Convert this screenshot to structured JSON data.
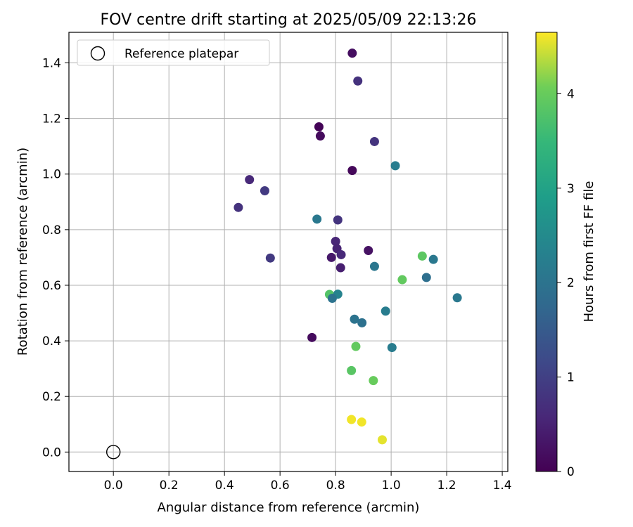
{
  "chart_data": {
    "type": "scatter",
    "title": "FOV centre drift starting at 2025/05/09 22:13:26",
    "xlabel": "Angular distance from reference (arcmin)",
    "ylabel": "Rotation from reference (arcmin)",
    "xlim": [
      -0.16,
      1.42
    ],
    "ylim": [
      -0.07,
      1.51
    ],
    "xticks": [
      "0.0",
      "0.2",
      "0.4",
      "0.6",
      "0.8",
      "1.0",
      "1.2",
      "1.4"
    ],
    "xtick_values": [
      0.0,
      0.2,
      0.4,
      0.6,
      0.8,
      1.0,
      1.2,
      1.4
    ],
    "yticks": [
      "0.0",
      "0.2",
      "0.4",
      "0.6",
      "0.8",
      "1.0",
      "1.2",
      "1.4"
    ],
    "ytick_values": [
      0.0,
      0.2,
      0.4,
      0.6,
      0.8,
      1.0,
      1.2,
      1.4
    ],
    "grid": true,
    "legend": {
      "position": "top-left",
      "label": "Reference platepar"
    },
    "reference_point": {
      "x": 0.0,
      "y": 0.0
    },
    "colorbar": {
      "label": "Hours from first FF file",
      "range": [
        0,
        4.65
      ],
      "ticks": [
        "0",
        "1",
        "2",
        "3",
        "4"
      ],
      "tick_values": [
        0,
        1,
        2,
        3,
        4
      ],
      "colormap": "viridis"
    },
    "points": [
      {
        "x": 0.86,
        "y": 1.435,
        "h": 0.2
      },
      {
        "x": 0.88,
        "y": 1.335,
        "h": 0.75
      },
      {
        "x": 0.74,
        "y": 1.17,
        "h": 0.05
      },
      {
        "x": 0.745,
        "y": 1.137,
        "h": 0.15
      },
      {
        "x": 0.94,
        "y": 1.117,
        "h": 0.8
      },
      {
        "x": 1.015,
        "y": 1.03,
        "h": 2.2
      },
      {
        "x": 0.86,
        "y": 1.013,
        "h": 0.1
      },
      {
        "x": 0.49,
        "y": 0.98,
        "h": 0.6
      },
      {
        "x": 0.545,
        "y": 0.94,
        "h": 0.9
      },
      {
        "x": 0.45,
        "y": 0.88,
        "h": 0.75
      },
      {
        "x": 0.733,
        "y": 0.838,
        "h": 2.1
      },
      {
        "x": 0.808,
        "y": 0.835,
        "h": 0.8
      },
      {
        "x": 0.8,
        "y": 0.758,
        "h": 0.55
      },
      {
        "x": 0.805,
        "y": 0.732,
        "h": 0.5
      },
      {
        "x": 0.918,
        "y": 0.725,
        "h": 0.25
      },
      {
        "x": 0.82,
        "y": 0.71,
        "h": 0.6
      },
      {
        "x": 0.785,
        "y": 0.7,
        "h": 0.35
      },
      {
        "x": 0.565,
        "y": 0.698,
        "h": 0.9
      },
      {
        "x": 1.112,
        "y": 0.705,
        "h": 3.9
      },
      {
        "x": 1.152,
        "y": 0.693,
        "h": 2.1
      },
      {
        "x": 0.94,
        "y": 0.668,
        "h": 2.05
      },
      {
        "x": 0.818,
        "y": 0.663,
        "h": 0.45
      },
      {
        "x": 1.127,
        "y": 0.628,
        "h": 1.9
      },
      {
        "x": 1.04,
        "y": 0.62,
        "h": 3.95
      },
      {
        "x": 0.778,
        "y": 0.567,
        "h": 3.8
      },
      {
        "x": 0.808,
        "y": 0.568,
        "h": 2.35
      },
      {
        "x": 0.788,
        "y": 0.553,
        "h": 2.0
      },
      {
        "x": 1.238,
        "y": 0.555,
        "h": 2.1
      },
      {
        "x": 0.98,
        "y": 0.507,
        "h": 2.2
      },
      {
        "x": 0.868,
        "y": 0.478,
        "h": 2.0
      },
      {
        "x": 0.895,
        "y": 0.465,
        "h": 1.95
      },
      {
        "x": 0.715,
        "y": 0.412,
        "h": 0.15
      },
      {
        "x": 0.873,
        "y": 0.38,
        "h": 3.95
      },
      {
        "x": 1.003,
        "y": 0.376,
        "h": 2.2
      },
      {
        "x": 0.857,
        "y": 0.293,
        "h": 3.85
      },
      {
        "x": 0.936,
        "y": 0.257,
        "h": 4.0
      },
      {
        "x": 0.857,
        "y": 0.117,
        "h": 4.6
      },
      {
        "x": 0.894,
        "y": 0.108,
        "h": 4.6
      },
      {
        "x": 0.968,
        "y": 0.044,
        "h": 4.55
      }
    ]
  }
}
